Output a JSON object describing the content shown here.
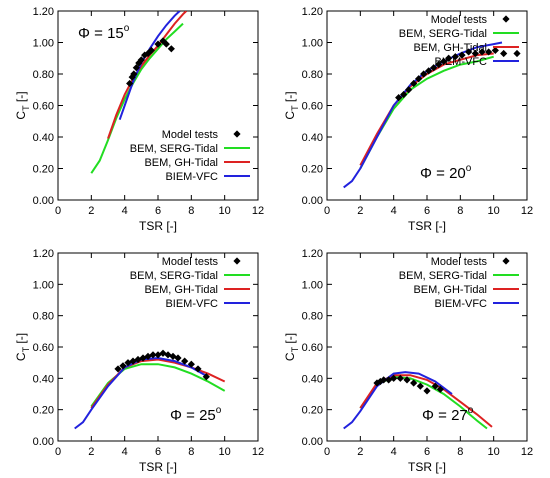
{
  "chart_data": [
    {
      "type": "line",
      "phi_symbol": "Φ",
      "phi_value": "15",
      "phi_sup": "o",
      "xlabel": "TSR [-]",
      "ylabel_main": "C",
      "ylabel_sub": "T",
      "ylabel_unit": "[-]",
      "xlim": [
        0,
        12
      ],
      "ylim": [
        0,
        1.2
      ],
      "x_ticks": [
        0,
        2,
        4,
        6,
        8,
        10,
        12
      ],
      "y_ticks": [
        0.0,
        0.2,
        0.4,
        0.6,
        0.8,
        1.0,
        1.2
      ],
      "legend_position": "bottom-right",
      "series": [
        {
          "name": "Model tests",
          "kind": "markers",
          "color": "#000000",
          "points": [
            [
              4.3,
              0.74
            ],
            [
              4.45,
              0.78
            ],
            [
              4.55,
              0.8
            ],
            [
              4.7,
              0.84
            ],
            [
              4.85,
              0.87
            ],
            [
              5.0,
              0.89
            ],
            [
              5.2,
              0.92
            ],
            [
              5.4,
              0.93
            ],
            [
              5.6,
              0.95
            ],
            [
              6.0,
              0.99
            ],
            [
              6.3,
              1.01
            ],
            [
              6.5,
              0.99
            ],
            [
              6.8,
              0.96
            ]
          ]
        },
        {
          "name": "BEM, SERG-Tidal",
          "kind": "line",
          "color": "#22dd22",
          "points": [
            [
              2.0,
              0.17
            ],
            [
              2.5,
              0.25
            ],
            [
              3.0,
              0.38
            ],
            [
              3.5,
              0.52
            ],
            [
              4.0,
              0.64
            ],
            [
              4.5,
              0.74
            ],
            [
              5.0,
              0.83
            ],
            [
              5.5,
              0.9
            ],
            [
              6.0,
              0.96
            ],
            [
              6.5,
              1.02
            ],
            [
              7.0,
              1.07
            ],
            [
              7.5,
              1.12
            ]
          ]
        },
        {
          "name": "BEM, GH-Tidal",
          "kind": "line",
          "color": "#dd2222",
          "points": [
            [
              3.0,
              0.39
            ],
            [
              3.5,
              0.54
            ],
            [
              4.0,
              0.67
            ],
            [
              4.5,
              0.77
            ],
            [
              5.0,
              0.85
            ],
            [
              5.5,
              0.92
            ],
            [
              6.0,
              0.98
            ],
            [
              6.5,
              1.05
            ],
            [
              7.0,
              1.12
            ],
            [
              7.5,
              1.18
            ],
            [
              7.7,
              1.2
            ]
          ]
        },
        {
          "name": "BIEM-VFC",
          "kind": "line",
          "color": "#2222dd",
          "points": [
            [
              3.7,
              0.51
            ],
            [
              4.0,
              0.6
            ],
            [
              4.5,
              0.75
            ],
            [
              5.0,
              0.87
            ],
            [
              5.5,
              0.96
            ],
            [
              6.0,
              1.04
            ],
            [
              6.5,
              1.11
            ],
            [
              7.0,
              1.17
            ],
            [
              7.3,
              1.2
            ]
          ]
        }
      ]
    },
    {
      "type": "line",
      "phi_symbol": "Φ",
      "phi_value": "20",
      "phi_sup": "o",
      "xlabel": "TSR [-]",
      "ylabel_main": "C",
      "ylabel_sub": "T",
      "ylabel_unit": "[-]",
      "xlim": [
        0,
        12
      ],
      "ylim": [
        0,
        1.2
      ],
      "x_ticks": [
        0,
        2,
        4,
        6,
        8,
        10,
        12
      ],
      "y_ticks": [
        0.0,
        0.2,
        0.4,
        0.6,
        0.8,
        1.0,
        1.2
      ],
      "legend_position": "top-right",
      "series": [
        {
          "name": "Model tests",
          "kind": "markers",
          "color": "#000000",
          "points": [
            [
              4.3,
              0.65
            ],
            [
              4.6,
              0.67
            ],
            [
              4.9,
              0.7
            ],
            [
              5.2,
              0.74
            ],
            [
              5.5,
              0.77
            ],
            [
              5.8,
              0.8
            ],
            [
              6.1,
              0.82
            ],
            [
              6.4,
              0.84
            ],
            [
              6.7,
              0.86
            ],
            [
              7.0,
              0.88
            ],
            [
              7.3,
              0.9
            ],
            [
              7.7,
              0.91
            ],
            [
              8.1,
              0.92
            ],
            [
              8.5,
              0.94
            ],
            [
              8.9,
              0.93
            ],
            [
              9.3,
              0.94
            ],
            [
              9.7,
              0.94
            ],
            [
              10.1,
              0.95
            ],
            [
              10.6,
              0.93
            ],
            [
              11.4,
              0.93
            ]
          ]
        },
        {
          "name": "BEM, SERG-Tidal",
          "kind": "line",
          "color": "#22dd22",
          "points": [
            [
              2.0,
              0.2
            ],
            [
              3.0,
              0.4
            ],
            [
              4.0,
              0.58
            ],
            [
              5.0,
              0.7
            ],
            [
              6.0,
              0.77
            ],
            [
              7.0,
              0.82
            ],
            [
              8.0,
              0.86
            ],
            [
              9.0,
              0.88
            ],
            [
              10.0,
              0.91
            ]
          ]
        },
        {
          "name": "BEM, GH-Tidal",
          "kind": "line",
          "color": "#dd2222",
          "points": [
            [
              2.0,
              0.22
            ],
            [
              3.0,
              0.42
            ],
            [
              4.0,
              0.6
            ],
            [
              5.0,
              0.72
            ],
            [
              6.0,
              0.8
            ],
            [
              7.0,
              0.86
            ],
            [
              8.0,
              0.89
            ],
            [
              9.0,
              0.92
            ],
            [
              10.0,
              0.93
            ]
          ]
        },
        {
          "name": "BIEM-VFC",
          "kind": "line",
          "color": "#2222dd",
          "points": [
            [
              1.0,
              0.08
            ],
            [
              1.5,
              0.12
            ],
            [
              2.0,
              0.2
            ],
            [
              3.0,
              0.4
            ],
            [
              4.0,
              0.6
            ],
            [
              5.0,
              0.73
            ],
            [
              6.0,
              0.82
            ],
            [
              7.0,
              0.88
            ],
            [
              8.0,
              0.93
            ],
            [
              9.0,
              0.97
            ],
            [
              10.0,
              0.99
            ],
            [
              10.5,
              1.0
            ]
          ]
        }
      ]
    },
    {
      "type": "line",
      "phi_symbol": "Φ",
      "phi_value": "25",
      "phi_sup": "o",
      "xlabel": "TSR [-]",
      "ylabel_main": "C",
      "ylabel_sub": "T",
      "ylabel_unit": "[-]",
      "xlim": [
        0,
        12
      ],
      "ylim": [
        0,
        1.2
      ],
      "x_ticks": [
        0,
        2,
        4,
        6,
        8,
        10,
        12
      ],
      "y_ticks": [
        0.0,
        0.2,
        0.4,
        0.6,
        0.8,
        1.0,
        1.2
      ],
      "legend_position": "top-right",
      "series": [
        {
          "name": "Model tests",
          "kind": "markers",
          "color": "#000000",
          "points": [
            [
              3.6,
              0.46
            ],
            [
              3.9,
              0.48
            ],
            [
              4.2,
              0.5
            ],
            [
              4.5,
              0.51
            ],
            [
              4.8,
              0.52
            ],
            [
              5.1,
              0.53
            ],
            [
              5.4,
              0.54
            ],
            [
              5.7,
              0.55
            ],
            [
              6.0,
              0.55
            ],
            [
              6.3,
              0.56
            ],
            [
              6.6,
              0.55
            ],
            [
              6.9,
              0.54
            ],
            [
              7.2,
              0.53
            ],
            [
              7.6,
              0.51
            ],
            [
              8.0,
              0.49
            ],
            [
              8.4,
              0.46
            ],
            [
              8.9,
              0.41
            ]
          ]
        },
        {
          "name": "BEM, SERG-Tidal",
          "kind": "line",
          "color": "#22dd22",
          "points": [
            [
              2.0,
              0.22
            ],
            [
              3.0,
              0.37
            ],
            [
              4.0,
              0.46
            ],
            [
              5.0,
              0.49
            ],
            [
              6.0,
              0.49
            ],
            [
              7.0,
              0.47
            ],
            [
              8.0,
              0.43
            ],
            [
              9.0,
              0.38
            ],
            [
              10.0,
              0.32
            ]
          ]
        },
        {
          "name": "BEM, GH-Tidal",
          "kind": "line",
          "color": "#dd2222",
          "points": [
            [
              2.0,
              0.21
            ],
            [
              3.0,
              0.36
            ],
            [
              4.0,
              0.47
            ],
            [
              5.0,
              0.51
            ],
            [
              6.0,
              0.52
            ],
            [
              7.0,
              0.5
            ],
            [
              8.0,
              0.47
            ],
            [
              9.0,
              0.43
            ],
            [
              10.0,
              0.38
            ]
          ]
        },
        {
          "name": "BIEM-VFC",
          "kind": "line",
          "color": "#2222dd",
          "points": [
            [
              1.0,
              0.08
            ],
            [
              1.5,
              0.12
            ],
            [
              2.0,
              0.2
            ],
            [
              3.0,
              0.35
            ],
            [
              4.0,
              0.47
            ],
            [
              5.0,
              0.52
            ],
            [
              6.0,
              0.53
            ],
            [
              7.0,
              0.51
            ],
            [
              8.0,
              0.47
            ],
            [
              9.0,
              0.41
            ]
          ]
        }
      ]
    },
    {
      "type": "line",
      "phi_symbol": "Φ",
      "phi_value": "27",
      "phi_sup": "o",
      "xlabel": "TSR [-]",
      "ylabel_main": "C",
      "ylabel_sub": "T",
      "ylabel_unit": "[-]",
      "xlim": [
        0,
        12
      ],
      "ylim": [
        0,
        1.2
      ],
      "x_ticks": [
        0,
        2,
        4,
        6,
        8,
        10,
        12
      ],
      "y_ticks": [
        0.0,
        0.2,
        0.4,
        0.6,
        0.8,
        1.0,
        1.2
      ],
      "legend_position": "top-right",
      "series": [
        {
          "name": "Model tests",
          "kind": "markers",
          "color": "#000000",
          "points": [
            [
              3.0,
              0.37
            ],
            [
              3.2,
              0.38
            ],
            [
              3.4,
              0.39
            ],
            [
              3.7,
              0.39
            ],
            [
              4.0,
              0.4
            ],
            [
              4.4,
              0.4
            ],
            [
              4.8,
              0.39
            ],
            [
              5.2,
              0.37
            ],
            [
              5.6,
              0.35
            ],
            [
              6.0,
              0.32
            ],
            [
              6.5,
              0.35
            ],
            [
              6.8,
              0.33
            ]
          ]
        },
        {
          "name": "BEM, SERG-Tidal",
          "kind": "line",
          "color": "#22dd22",
          "points": [
            [
              2.0,
              0.21
            ],
            [
              3.0,
              0.36
            ],
            [
              4.0,
              0.41
            ],
            [
              5.0,
              0.4
            ],
            [
              6.0,
              0.36
            ],
            [
              7.0,
              0.3
            ],
            [
              8.0,
              0.22
            ],
            [
              9.0,
              0.13
            ],
            [
              9.6,
              0.08
            ]
          ]
        },
        {
          "name": "BEM, GH-Tidal",
          "kind": "line",
          "color": "#dd2222",
          "points": [
            [
              2.0,
              0.21
            ],
            [
              3.0,
              0.37
            ],
            [
              4.0,
              0.42
            ],
            [
              5.0,
              0.42
            ],
            [
              6.0,
              0.39
            ],
            [
              7.0,
              0.33
            ],
            [
              8.0,
              0.25
            ],
            [
              9.0,
              0.17
            ],
            [
              9.9,
              0.09
            ]
          ]
        },
        {
          "name": "BIEM-VFC",
          "kind": "line",
          "color": "#2222dd",
          "points": [
            [
              1.0,
              0.08
            ],
            [
              1.5,
              0.12
            ],
            [
              2.0,
              0.19
            ],
            [
              3.0,
              0.35
            ],
            [
              4.0,
              0.43
            ],
            [
              4.7,
              0.44
            ],
            [
              5.5,
              0.43
            ],
            [
              6.5,
              0.38
            ],
            [
              7.5,
              0.3
            ]
          ]
        }
      ]
    }
  ]
}
